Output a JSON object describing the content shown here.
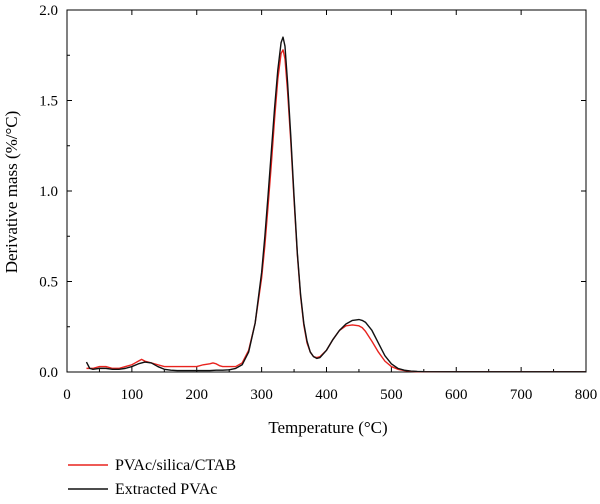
{
  "chart_data": {
    "type": "line",
    "xlabel": "Temperature (°C)",
    "ylabel": "Derivative mass (%/°C)",
    "xlim": [
      0,
      800
    ],
    "ylim": [
      0,
      2.0
    ],
    "xticks": [
      0,
      100,
      200,
      300,
      400,
      500,
      600,
      700,
      800
    ],
    "yticks": [
      0.0,
      0.5,
      1.0,
      1.5,
      2.0
    ],
    "ytick_labels": [
      "0.0",
      "0.5",
      "1.0",
      "1.5",
      "2.0"
    ],
    "grid": false,
    "legend_position": "bottom-left",
    "series": [
      {
        "name": "PVAc/silica/CTAB",
        "color": "#e8231e",
        "x": [
          30,
          40,
          50,
          60,
          70,
          80,
          90,
          100,
          105,
          110,
          115,
          120,
          130,
          140,
          150,
          160,
          170,
          180,
          190,
          200,
          210,
          220,
          225,
          230,
          235,
          240,
          250,
          260,
          270,
          280,
          290,
          300,
          305,
          310,
          315,
          320,
          325,
          330,
          333,
          336,
          340,
          345,
          350,
          355,
          360,
          365,
          370,
          375,
          380,
          385,
          390,
          400,
          410,
          420,
          430,
          440,
          450,
          455,
          460,
          470,
          480,
          490,
          500,
          510,
          520,
          530,
          540,
          550,
          600,
          650,
          700,
          750,
          800
        ],
        "y": [
          0.02,
          0.02,
          0.03,
          0.03,
          0.02,
          0.02,
          0.03,
          0.04,
          0.05,
          0.06,
          0.07,
          0.06,
          0.05,
          0.04,
          0.03,
          0.03,
          0.03,
          0.03,
          0.03,
          0.03,
          0.04,
          0.045,
          0.05,
          0.045,
          0.035,
          0.03,
          0.03,
          0.03,
          0.05,
          0.12,
          0.27,
          0.52,
          0.7,
          0.92,
          1.15,
          1.4,
          1.62,
          1.76,
          1.78,
          1.73,
          1.55,
          1.27,
          0.95,
          0.65,
          0.42,
          0.26,
          0.16,
          0.11,
          0.085,
          0.08,
          0.085,
          0.12,
          0.18,
          0.23,
          0.255,
          0.26,
          0.255,
          0.245,
          0.225,
          0.17,
          0.11,
          0.06,
          0.03,
          0.015,
          0.008,
          0.004,
          0.002,
          0.001,
          0.001,
          0.001,
          0.001,
          0.001,
          0.001
        ]
      },
      {
        "name": "Extracted PVAc",
        "color": "#111111",
        "x": [
          30,
          35,
          40,
          50,
          60,
          70,
          80,
          90,
          100,
          110,
          115,
          120,
          130,
          140,
          150,
          160,
          170,
          180,
          190,
          200,
          210,
          220,
          230,
          240,
          250,
          260,
          270,
          280,
          290,
          300,
          305,
          310,
          315,
          320,
          325,
          330,
          333,
          336,
          340,
          345,
          350,
          355,
          360,
          365,
          370,
          375,
          380,
          385,
          390,
          400,
          410,
          420,
          430,
          440,
          450,
          455,
          460,
          470,
          480,
          490,
          500,
          510,
          520,
          530,
          540,
          550,
          600,
          650,
          700,
          750,
          800
        ],
        "y": [
          0.055,
          0.02,
          0.015,
          0.02,
          0.02,
          0.015,
          0.015,
          0.02,
          0.03,
          0.045,
          0.05,
          0.055,
          0.05,
          0.03,
          0.015,
          0.01,
          0.008,
          0.008,
          0.008,
          0.008,
          0.008,
          0.008,
          0.01,
          0.01,
          0.012,
          0.02,
          0.04,
          0.11,
          0.27,
          0.55,
          0.75,
          0.98,
          1.22,
          1.46,
          1.67,
          1.82,
          1.85,
          1.8,
          1.6,
          1.3,
          0.97,
          0.66,
          0.43,
          0.27,
          0.17,
          0.11,
          0.085,
          0.075,
          0.08,
          0.12,
          0.18,
          0.23,
          0.265,
          0.285,
          0.29,
          0.285,
          0.275,
          0.23,
          0.16,
          0.09,
          0.045,
          0.02,
          0.01,
          0.005,
          0.003,
          0.002,
          0.001,
          0.001,
          0.001,
          0.001,
          0.001
        ]
      }
    ]
  }
}
